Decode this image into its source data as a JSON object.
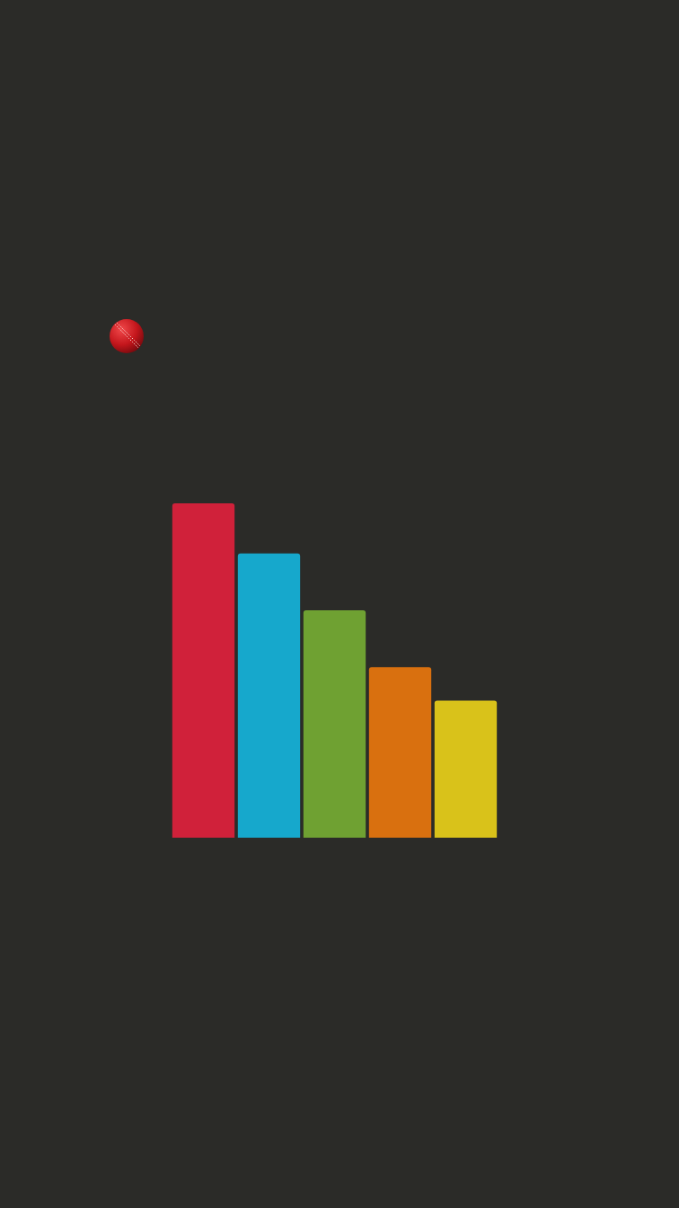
{
  "chart_data": {
    "type": "bar",
    "categories": [
      null,
      null,
      null,
      null,
      null
    ],
    "values": [
      100,
      85,
      68,
      51,
      41
    ],
    "colors": [
      "#d0213a",
      "#16a8cc",
      "#6fa132",
      "#d9700f",
      "#d9c21a"
    ],
    "ylim": [
      0,
      100
    ],
    "grid": false,
    "tick_labels": false
  }
}
